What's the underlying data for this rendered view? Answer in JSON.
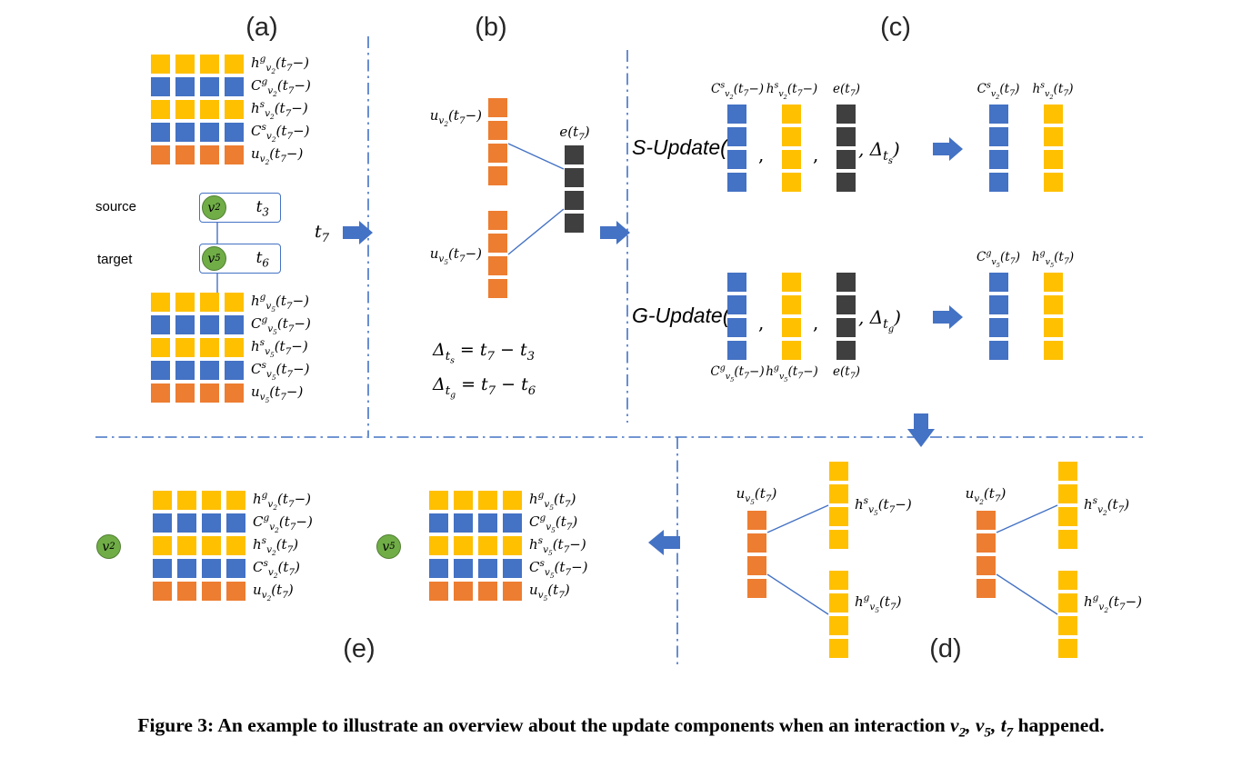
{
  "colors": {
    "yellow": "#FFC000",
    "blue": "#4472C4",
    "orange": "#ED7D31",
    "dark": "#3F3F3F",
    "green": "#70AD47",
    "green_border": "#507E32",
    "accent": "#4472C4"
  },
  "panels": {
    "a": {
      "label": "(a)",
      "source_tag": "source",
      "source_node": "v_{2}",
      "source_time": "t_{3}",
      "target_tag": "target",
      "target_node": "v_{5}",
      "target_time": "t_{6}",
      "source_grid": {
        "rows": [
          {
            "label": "h^{g}_{v_{2}}(t_{7}−)",
            "color": "yellow"
          },
          {
            "label": "C^{g}_{v_{2}}(t_{7}−)",
            "color": "blue"
          },
          {
            "label": "h^{s}_{v_{2}}(t_{7}−)",
            "color": "yellow"
          },
          {
            "label": "C^{s}_{v_{2}}(t_{7}−)",
            "color": "blue"
          },
          {
            "label": "u_{v_{2}}(t_{7}−)",
            "color": "orange"
          }
        ]
      },
      "target_grid": {
        "rows": [
          {
            "label": "h^{g}_{v_{5}}(t_{7}−)",
            "color": "yellow"
          },
          {
            "label": "C^{g}_{v_{5}}(t_{7}−)",
            "color": "blue"
          },
          {
            "label": "h^{s}_{v_{5}}(t_{7}−)",
            "color": "yellow"
          },
          {
            "label": "C^{s}_{v_{5}}(t_{7}−)",
            "color": "blue"
          },
          {
            "label": "u_{v_{5}}(t_{7}−)",
            "color": "orange"
          }
        ]
      }
    },
    "t7": "t_{7}",
    "b": {
      "label": "(b)",
      "u_v2": {
        "label": "u_{v_{2}}(t_{7}−)",
        "color": "orange"
      },
      "u_v5": {
        "label": "u_{v_{5}}(t_{7}−)",
        "color": "orange"
      },
      "e": {
        "label": "e(t_{7})",
        "color": "dark"
      },
      "delta_s": "Δ_{t_{s}} = t_{7} − t_{3}",
      "delta_g": "Δ_{t_{g}} = t_{7} − t_{6}"
    },
    "c": {
      "label": "(c)",
      "s": {
        "fn": "S-Update(",
        "comma": ",",
        "close": ", Δ_{t_{s}})",
        "inputs": [
          {
            "label": "C^{s}_{v_{2}}(t_{7}−)",
            "color": "blue"
          },
          {
            "label": "h^{s}_{v_{2}}(t_{7}−)",
            "color": "yellow"
          },
          {
            "label": "e(t_{7})",
            "color": "dark"
          }
        ],
        "outputs": [
          {
            "label": "C^{s}_{v_{2}}(t_{7})",
            "color": "blue"
          },
          {
            "label": "h^{s}_{v_{2}}(t_{7})",
            "color": "yellow"
          }
        ]
      },
      "g": {
        "fn": "G-Update(",
        "comma": ",",
        "close": ", Δ_{t_{g}})",
        "inputs": [
          {
            "label": "C^{g}_{v_{5}}(t_{7}−)",
            "color": "blue"
          },
          {
            "label": "h^{g}_{v_{5}}(t_{7}−)",
            "color": "yellow"
          },
          {
            "label": "e(t_{7})",
            "color": "dark"
          }
        ],
        "outputs": [
          {
            "label": "C^{g}_{v_{5}}(t_{7})",
            "color": "blue"
          },
          {
            "label": "h^{g}_{v_{5}}(t_{7})",
            "color": "yellow"
          }
        ]
      }
    },
    "d": {
      "label": "(d)",
      "left": {
        "u": {
          "label": "u_{v_{5}}(t_{7})",
          "color": "orange"
        },
        "top": {
          "label": "h^{s}_{v_{5}}(t_{7}−)",
          "color": "yellow"
        },
        "bottom": {
          "label": "h^{g}_{v_{5}}(t_{7})",
          "color": "yellow"
        }
      },
      "right": {
        "u": {
          "label": "u_{v_{2}}(t_{7})",
          "color": "orange"
        },
        "top": {
          "label": "h^{s}_{v_{2}}(t_{7})",
          "color": "yellow"
        },
        "bottom": {
          "label": "h^{g}_{v_{2}}(t_{7}−)",
          "color": "yellow"
        }
      }
    },
    "e": {
      "label": "(e)",
      "v2": {
        "node": "v_{2}",
        "grid": {
          "rows": [
            {
              "label": "h^{g}_{v_{2}}(t_{7}−)",
              "color": "yellow"
            },
            {
              "label": "C^{g}_{v_{2}}(t_{7}−)",
              "color": "blue"
            },
            {
              "label": "h^{s}_{v_{2}}(t_{7})",
              "color": "yellow"
            },
            {
              "label": "C^{s}_{v_{2}}(t_{7})",
              "color": "blue"
            },
            {
              "label": "u_{v_{2}}(t_{7})",
              "color": "orange"
            }
          ]
        }
      },
      "v5": {
        "node": "v_{5}",
        "grid": {
          "rows": [
            {
              "label": "h^{g}_{v_{5}}(t_{7})",
              "color": "yellow"
            },
            {
              "label": "C^{g}_{v_{5}}(t_{7})",
              "color": "blue"
            },
            {
              "label": "h^{s}_{v_{5}}(t_{7}−)",
              "color": "yellow"
            },
            {
              "label": "C^{s}_{v_{5}}(t_{7}−)",
              "color": "blue"
            },
            {
              "label": "u_{v_{5}}(t_{7})",
              "color": "orange"
            }
          ]
        }
      }
    }
  },
  "caption": {
    "prefix": "Figure 3: An example to illustrate an overview about the update components when an interaction ",
    "math": "v_{2}, v_{5}, t_{7}",
    "suffix": " happened."
  }
}
